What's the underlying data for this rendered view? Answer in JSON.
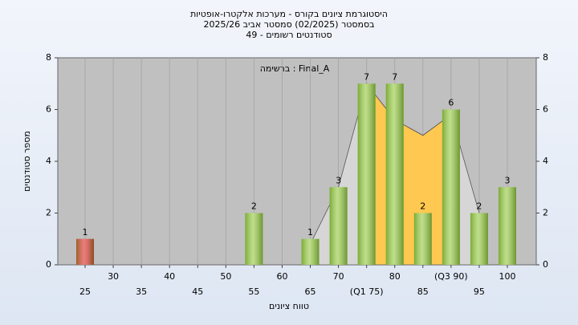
{
  "chart_data": {
    "type": "bar",
    "title": "היסטוגרמת ציונים בקורס - מערכות אלקטרו-אופטיות",
    "subtitle": "בסמסטר  (02/2025)  סמסטר אביב 2025/26",
    "subtitle2": "סטודנטים רשומים - 49",
    "annotation": "ברשימה : Final_A",
    "y_label": "מספר סטודנטים",
    "x_label": "טווח ציונים",
    "categories": [
      "25",
      "30",
      "35",
      "40",
      "45",
      "50",
      "55",
      "60",
      "65",
      "70",
      "(Q1 75)",
      "80",
      "85",
      "(Q3 90)",
      "95",
      "100"
    ],
    "values": [
      1,
      0,
      0,
      0,
      0,
      0,
      2,
      0,
      1,
      3,
      7,
      7,
      2,
      6,
      2,
      3
    ],
    "colors": [
      "#e03434",
      "#9ccc4c",
      "#9ccc4c",
      "#9ccc4c",
      "#9ccc4c",
      "#9ccc4c",
      "#9ccc4c",
      "#9ccc4c",
      "#9ccc4c",
      "#9ccc4c",
      "#9ccc4c",
      "#9ccc4c",
      "#9ccc4c",
      "#9ccc4c",
      "#9ccc4c",
      "#9ccc4c"
    ],
    "curve_values": [
      null,
      null,
      null,
      null,
      null,
      null,
      null,
      null,
      0.8,
      3,
      7,
      5.6,
      5,
      5.8,
      2,
      null
    ],
    "curve_color": "#d6d6d6",
    "iqr_values": [
      null,
      null,
      null,
      null,
      null,
      null,
      null,
      null,
      null,
      null,
      7,
      5.6,
      5,
      5.8,
      null,
      null
    ],
    "iqr_color": "#ffc850",
    "ylim": [
      0,
      8
    ],
    "yticks": [
      0,
      2,
      4,
      6,
      8
    ],
    "grid": true
  }
}
